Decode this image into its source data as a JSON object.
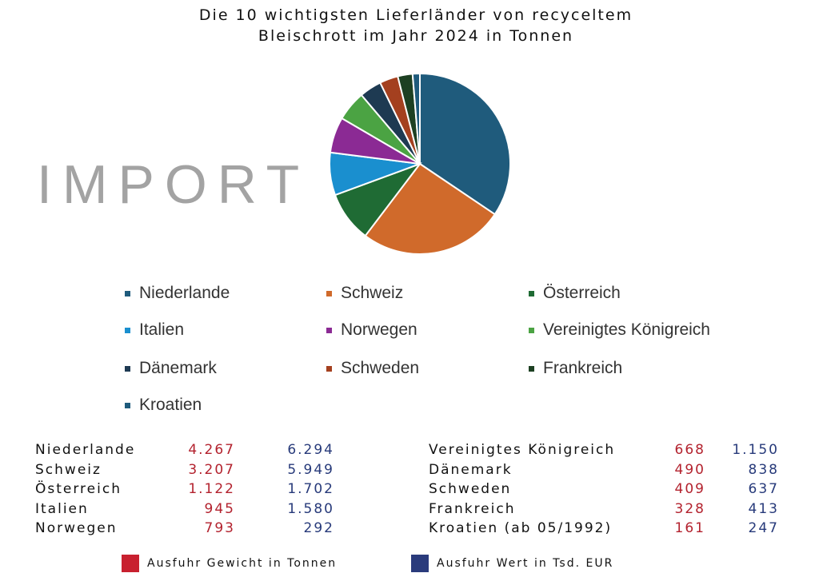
{
  "chart_data": {
    "type": "pie",
    "title": "Die 10 wichtigsten Lieferländer von recyceltem Bleischrott im Jahr 2024 in Tonnen",
    "title_lines": [
      "Die 10 wichtigsten Lieferländer von recyceltem",
      "Bleischrott im Jahr 2024 in Tonnen"
    ],
    "side_label": "IMPORT",
    "categories": [
      "Niederlande",
      "Schweiz",
      "Österreich",
      "Italien",
      "Norwegen",
      "Vereinigtes Königreich",
      "Dänemark",
      "Schweden",
      "Frankreich",
      "Kroatien"
    ],
    "values": [
      4267,
      3207,
      1122,
      945,
      793,
      668,
      490,
      409,
      328,
      161
    ],
    "colors": [
      "#1f5b7c",
      "#d06a2b",
      "#1f6b34",
      "#1a8fcf",
      "#8b2a94",
      "#4ba343",
      "#1e3a52",
      "#a4401f",
      "#1d4022",
      "#1f5b7c"
    ],
    "legend_placement": "bottom"
  },
  "table": {
    "left": [
      {
        "name": "Niederlande",
        "weight": "4.267",
        "value": "6.294"
      },
      {
        "name": "Schweiz",
        "weight": "3.207",
        "value": "5.949"
      },
      {
        "name": "Österreich",
        "weight": "1.122",
        "value": "1.702"
      },
      {
        "name": "Italien",
        "weight": "945",
        "value": "1.580"
      },
      {
        "name": "Norwegen",
        "weight": "793",
        "value": "292"
      }
    ],
    "right": [
      {
        "name": "Vereinigtes Königreich",
        "weight": "668",
        "value": "1.150"
      },
      {
        "name": "Dänemark",
        "weight": "490",
        "value": "838"
      },
      {
        "name": "Schweden",
        "weight": "409",
        "value": "637"
      },
      {
        "name": "Frankreich",
        "weight": "328",
        "value": "413"
      },
      {
        "name": "Kroatien (ab 05/1992)",
        "weight": "161",
        "value": "247"
      }
    ]
  },
  "footer": {
    "weight_label": "Ausfuhr Gewicht in Tonnen",
    "value_label": "Ausfuhr Wert in Tsd. EUR",
    "weight_color": "#c8202f",
    "value_color": "#2a3b7c"
  }
}
